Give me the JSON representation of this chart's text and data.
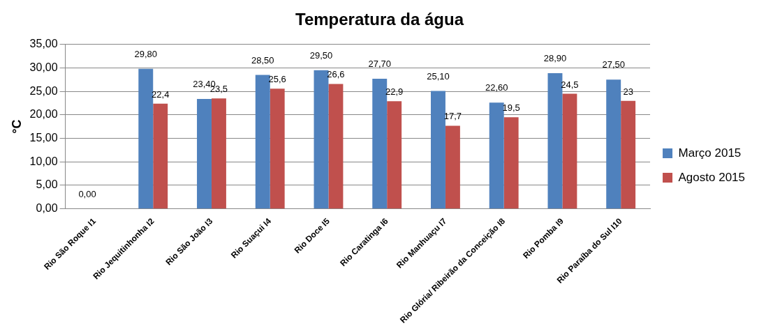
{
  "chart_data": {
    "type": "bar",
    "title": "Temperatura da água",
    "ylabel": "°C",
    "categories": [
      "Rio São Roque I1",
      "Rio Jequitinhonha I2",
      "Rio São João I3",
      "Rio Suaçui I4",
      "Rio Doce I5",
      "Rio Caratinga I6",
      "Rio Manhuaçu I7",
      "Rio Glória/ Ribeirão da Conceição I8",
      "Rio Pomba I9",
      "Rio Paraíba do Sul I10"
    ],
    "series": [
      {
        "name": "Março 2015",
        "color": "#4f81bd",
        "values": [
          0,
          29.8,
          23.4,
          28.5,
          29.5,
          27.7,
          25.1,
          22.6,
          28.9,
          27.5
        ],
        "value_labels": [
          "0,00",
          "29,80",
          "23,40",
          "28,50",
          "29,50",
          "27,70",
          "25,10",
          "22,60",
          "28,90",
          "27,50"
        ]
      },
      {
        "name": "Agosto 2015",
        "color": "#c0504d",
        "values": [
          null,
          22.4,
          23.5,
          25.6,
          26.6,
          22.9,
          17.7,
          19.5,
          24.5,
          23
        ],
        "value_labels": [
          null,
          "22,4",
          "23,5",
          "25,6",
          "26,6",
          "22,9",
          "17,7",
          "19,5",
          "24,5",
          "23"
        ]
      }
    ],
    "ylim": [
      0,
      35
    ],
    "yticks": [
      {
        "value": 0,
        "label": "0,00"
      },
      {
        "value": 5,
        "label": "5,00"
      },
      {
        "value": 10,
        "label": "10,00"
      },
      {
        "value": 15,
        "label": "15,00"
      },
      {
        "value": 20,
        "label": "20,00"
      },
      {
        "value": 25,
        "label": "25,00"
      },
      {
        "value": 30,
        "label": "30,00"
      },
      {
        "value": 35,
        "label": "35,00"
      }
    ],
    "grid": "y",
    "legend": "right"
  }
}
